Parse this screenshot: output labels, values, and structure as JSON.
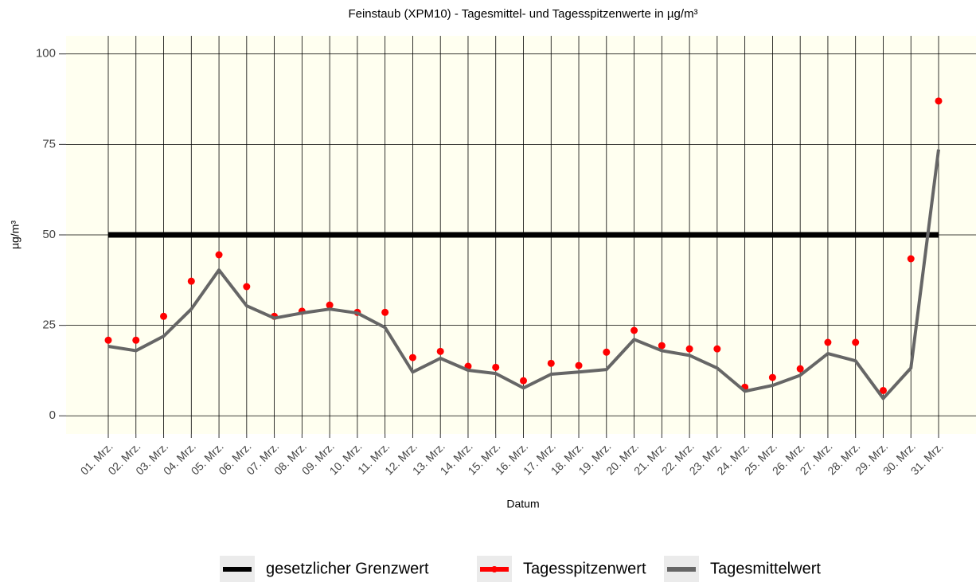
{
  "chart_data": {
    "type": "line",
    "title": "Feinstaub (XPM10) - Tagesmittel- und Tagesspitzenwerte in µg/m³",
    "x_label": "Datum",
    "y_label": "µg/m³",
    "categories": [
      "01. Mrz.",
      "02. Mrz.",
      "03. Mrz.",
      "04. Mrz.",
      "05. Mrz.",
      "06. Mrz.",
      "07. Mrz.",
      "08. Mrz.",
      "09. Mrz.",
      "10. Mrz.",
      "11. Mrz.",
      "12. Mrz.",
      "13. Mrz.",
      "14. Mrz.",
      "15. Mrz.",
      "16. Mrz.",
      "17. Mrz.",
      "18. Mrz.",
      "19. Mrz.",
      "20. Mrz.",
      "21. Mrz.",
      "22. Mrz.",
      "23. Mrz.",
      "24. Mrz.",
      "25. Mrz.",
      "26. Mrz.",
      "27. Mrz.",
      "28. Mrz.",
      "29. Mrz.",
      "30. Mrz.",
      "31. Mrz."
    ],
    "series": [
      {
        "name": "gesetzlicher Grenzwert",
        "color": "#000000",
        "style": "line",
        "values": [
          50,
          50,
          50,
          50,
          50,
          50,
          50,
          50,
          50,
          50,
          50,
          50,
          50,
          50,
          50,
          50,
          50,
          50,
          50,
          50,
          50,
          50,
          50,
          50,
          50,
          50,
          50,
          50,
          50,
          50,
          50
        ]
      },
      {
        "name": "Tagesspitzenwert",
        "color": "#ff0000",
        "style": "points",
        "values": [
          20.9,
          20.9,
          27.5,
          37.2,
          44.5,
          35.7,
          27.5,
          28.9,
          30.6,
          28.6,
          28.6,
          16.1,
          17.8,
          13.7,
          13.4,
          9.7,
          14.5,
          13.9,
          17.6,
          23.6,
          19.4,
          18.5,
          18.5,
          7.9,
          10.6,
          13,
          20.3,
          20.3,
          7,
          43.4,
          87
        ]
      },
      {
        "name": "Tagesmittelwert",
        "color": "#666666",
        "style": "line",
        "values": [
          19.2,
          18,
          22,
          29.5,
          40.3,
          30.4,
          27,
          28.4,
          29.5,
          28.4,
          24.4,
          12.1,
          15.9,
          12.6,
          11.7,
          7.7,
          11.5,
          12.1,
          12.8,
          21.1,
          18,
          16.7,
          13.2,
          6.8,
          8.4,
          11.2,
          17.2,
          15.2,
          4.8,
          13.2,
          73.6
        ]
      }
    ],
    "ylim": [
      -5,
      105
    ],
    "yticks": [
      0,
      25,
      50,
      75,
      100
    ],
    "grid": true,
    "legend": "bottom"
  }
}
